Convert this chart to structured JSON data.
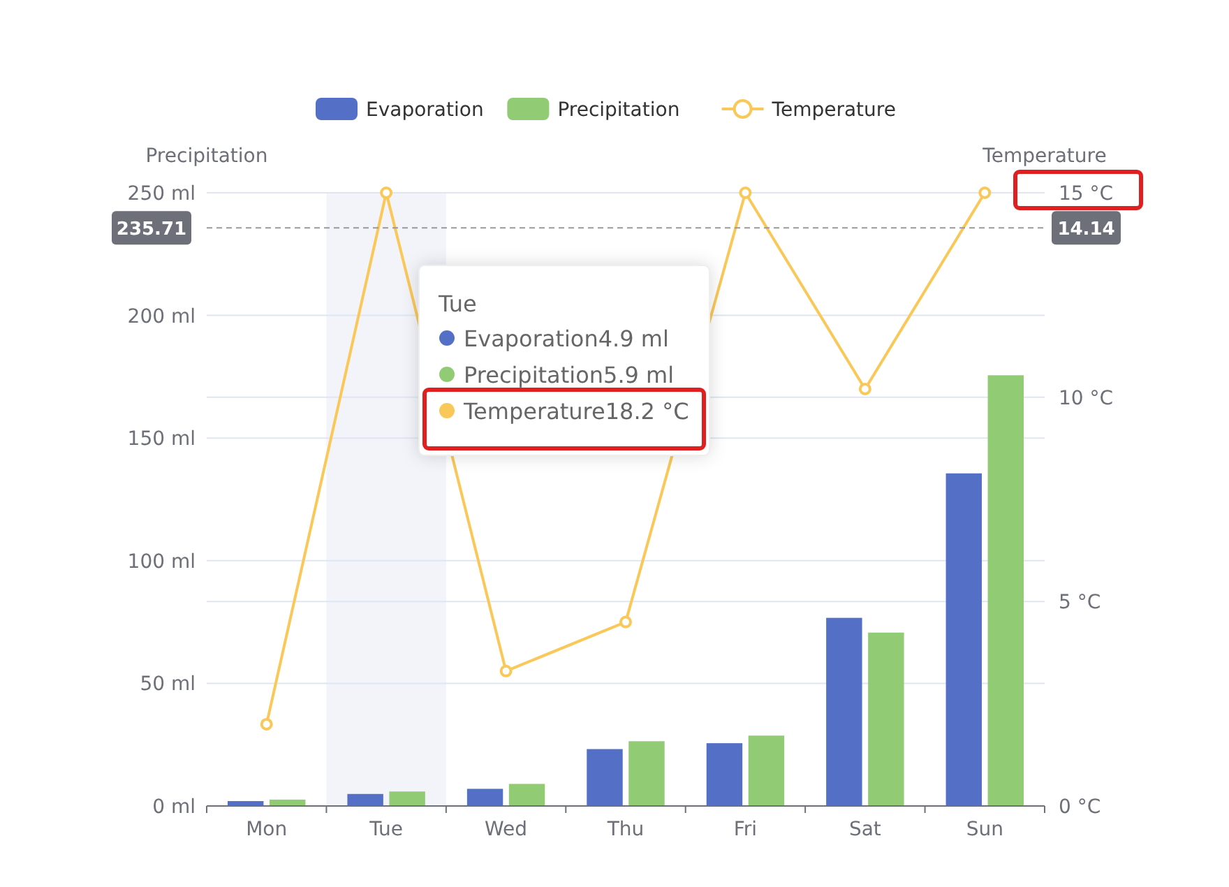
{
  "chart_data": {
    "type": "bar",
    "categories": [
      "Mon",
      "Tue",
      "Wed",
      "Thu",
      "Fri",
      "Sat",
      "Sun"
    ],
    "series": [
      {
        "name": "Evaporation",
        "color": "#5470c6",
        "values": [
          2.0,
          4.9,
          7.0,
          23.2,
          25.6,
          76.7,
          135.6
        ]
      },
      {
        "name": "Precipitation",
        "color": "#91cc75",
        "values": [
          2.6,
          5.9,
          9.0,
          26.4,
          28.7,
          70.7,
          175.6
        ]
      },
      {
        "name": "Temperature",
        "type": "line",
        "axis": "y2",
        "marker": "circle",
        "color": "#fac858",
        "values": [
          2.0,
          15,
          3.3,
          4.5,
          15,
          10.2,
          15
        ]
      }
    ],
    "ylabel": "Precipitation",
    "y2label": "Temperature",
    "ylim": [
      0,
      250
    ],
    "yticks": [
      {
        "value": 0,
        "label": "0 ml"
      },
      {
        "value": 50,
        "label": "50 ml"
      },
      {
        "value": 100,
        "label": "100 ml"
      },
      {
        "value": 150,
        "label": "150 ml"
      },
      {
        "value": 200,
        "label": "200 ml"
      },
      {
        "value": 250,
        "label": "250 ml"
      }
    ],
    "y2lim": [
      0,
      15
    ],
    "y2ticks": [
      {
        "value": 0,
        "label": "0 °C"
      },
      {
        "value": 5,
        "label": "5 °C"
      },
      {
        "value": 10,
        "label": "10 °C"
      },
      {
        "value": 15,
        "label": "15 °C"
      }
    ],
    "grid": "y",
    "legend": "top",
    "ref_lines": [
      {
        "axis": "y",
        "value": 235.71,
        "label": "235.71",
        "color": "#999999",
        "line_style": "dashed"
      }
    ],
    "bands": [
      {
        "axis": "x",
        "from": "Tue",
        "to": "Tue",
        "color": "#f2f4f9"
      }
    ],
    "annotations": [
      "14.14",
      "Tue",
      "Evaporation4.9 ml",
      "Precipitation5.9 ml",
      "Temperature18.2 °C"
    ]
  }
}
